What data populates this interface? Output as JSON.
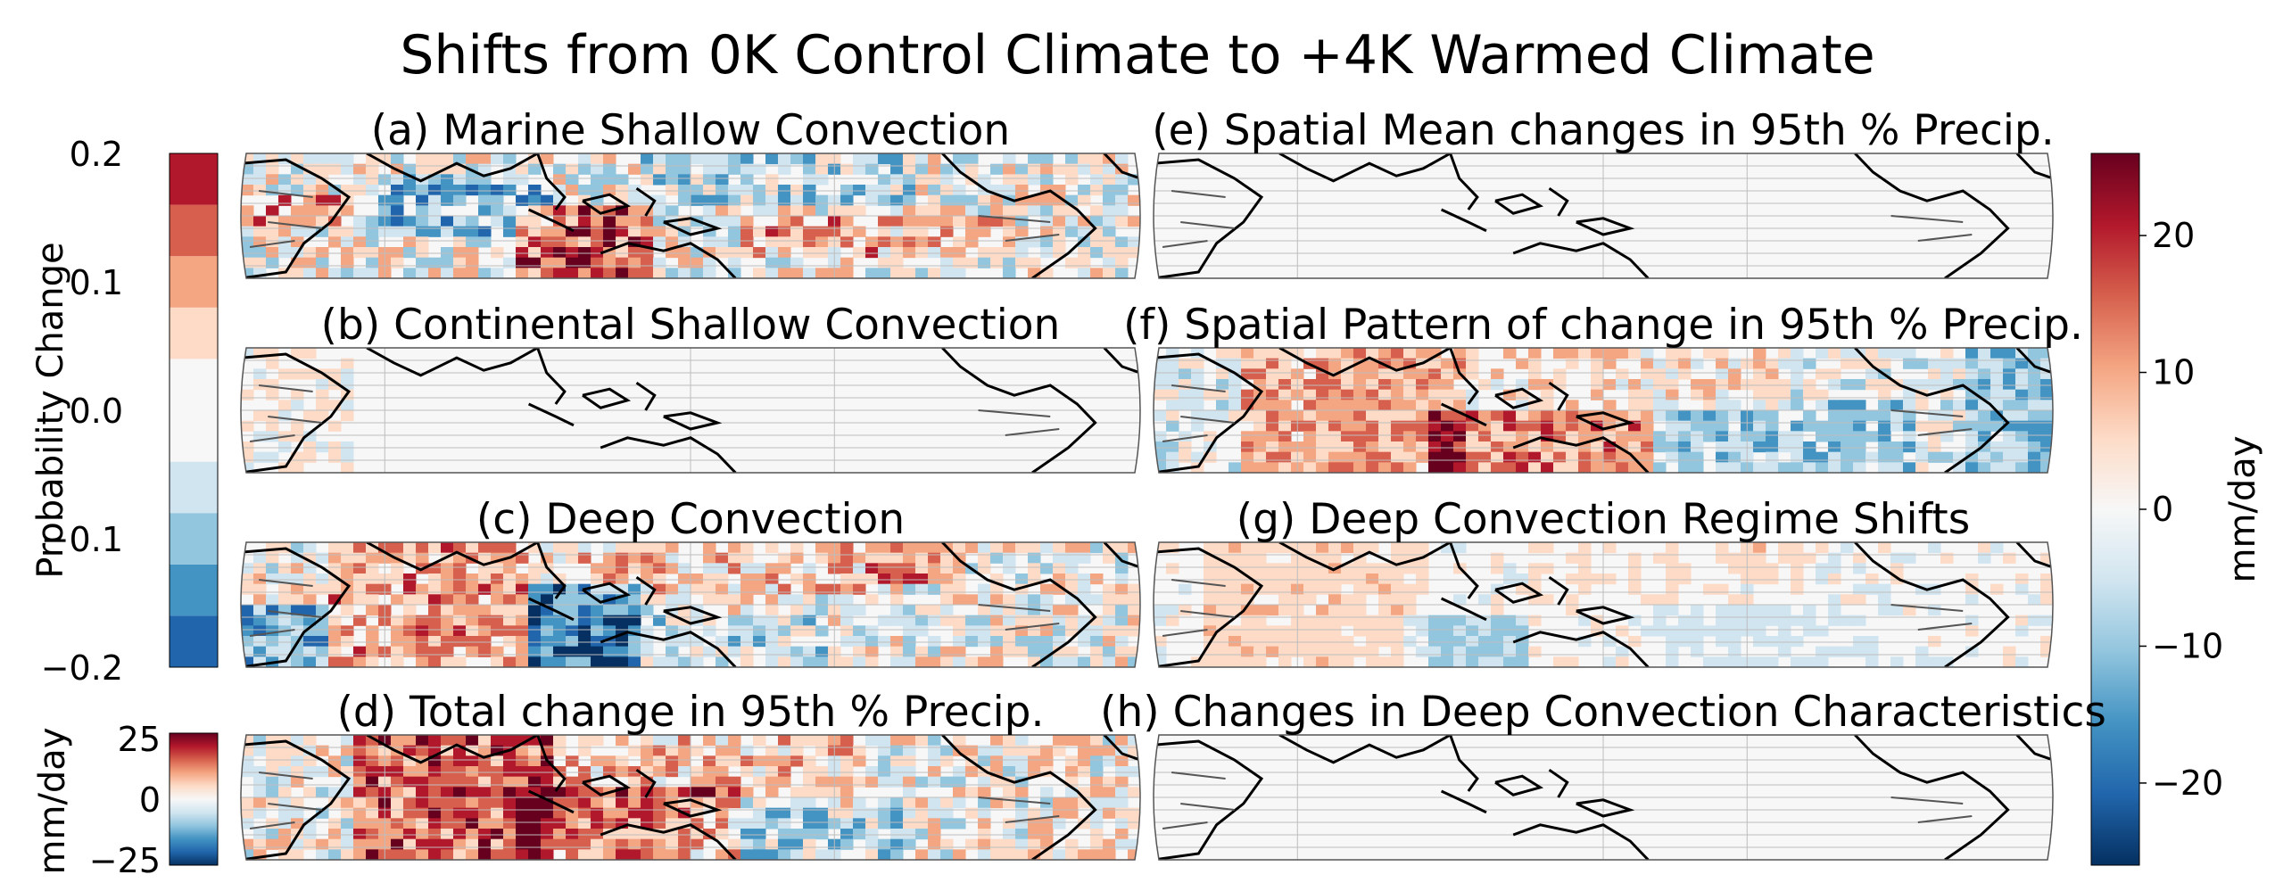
{
  "chart_data": {
    "type": "heatmap",
    "title": "Shifts from 0K Control Climate to +4K Warmed Climate",
    "projection": "map of tropics, coastlines and country borders, gridlines on",
    "panels": [
      {
        "id": "a",
        "title": "(a) Marine Shallow Convection",
        "scale": "probability",
        "pattern": "mixed red and blue over tropical oceans, red over Maritime Continent"
      },
      {
        "id": "b",
        "title": "(b) Continental Shallow Convection",
        "scale": "probability",
        "pattern": "near zero, weak changes over land"
      },
      {
        "id": "c",
        "title": "(c) Deep Convection",
        "scale": "probability",
        "pattern": "red over Indian Ocean, blue near Maritime Continent"
      },
      {
        "id": "d",
        "title": "(d) Total change in 95th % Precip.",
        "scale": "precip_small",
        "pattern": "strong positive over Indian Ocean and Pacific"
      },
      {
        "id": "e",
        "title": "(e) Spatial Mean changes in 95th % Precip.",
        "scale": "precip",
        "pattern": "uniform slight positive"
      },
      {
        "id": "f",
        "title": "(f) Spatial Pattern of change in 95th % Precip.",
        "scale": "precip",
        "pattern": "red over Indian Ocean and west Pacific, blue over east Pacific"
      },
      {
        "id": "g",
        "title": "(g) Deep Convection Regime Shifts",
        "scale": "precip",
        "pattern": "light red over Indian Ocean, blue near Maritime Continent"
      },
      {
        "id": "h",
        "title": "(h) Changes in Deep Convection Characteristics",
        "scale": "precip",
        "pattern": "near zero"
      }
    ],
    "colorbars": [
      {
        "id": "prob",
        "label": "Probability Change",
        "range": [
          -0.2,
          0.2
        ],
        "ticks": [
          "0.2",
          "0.1",
          "0.0",
          "−0.1",
          "−0.2"
        ],
        "levels": 10,
        "cmap": "RdBu_r"
      },
      {
        "id": "precip_small",
        "label": "mm/day",
        "range": [
          -25,
          25
        ],
        "ticks": [
          "25",
          "0",
          "−25"
        ],
        "cmap": "RdBu_r"
      },
      {
        "id": "precip",
        "label": "mm/day",
        "range": [
          -26,
          26
        ],
        "ticks": [
          "20",
          "10",
          "0",
          "−10",
          "−20"
        ],
        "cmap": "RdBu_r"
      }
    ],
    "colors": {
      "darkred": "#67001f",
      "red": "#b2182b",
      "midred": "#d6604d",
      "lightred": "#f4a582",
      "pale": "#fddbc7",
      "white": "#f7f7f7",
      "paleblue": "#d1e5f0",
      "lightblue": "#92c5de",
      "midblue": "#4393c3",
      "blue": "#2166ac",
      "darkblue": "#053061",
      "land": "#f7f7f7",
      "coast": "#000000",
      "border": "#555555",
      "grid": "#bdbdbd"
    }
  }
}
